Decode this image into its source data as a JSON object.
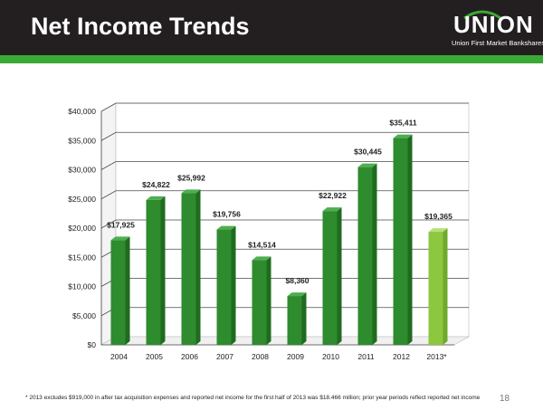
{
  "slide": {
    "title": "Net Income Trends",
    "footnote": "* 2013 excludes $919,000 in after tax acquisition expenses and reported net income for the first half of 2013 was $18.466 million; prior year periods reflect reported net income",
    "page_number": "18"
  },
  "logo": {
    "word": "UNION",
    "tagline": "Union First Market Bankshares"
  },
  "colors": {
    "header_bg": "#231f20",
    "accent_green": "#3aaa35",
    "bar_dark_green": "#2e8b2e",
    "bar_light_green": "#8dc63f"
  },
  "chart_data": {
    "type": "bar",
    "categories": [
      "2004",
      "2005",
      "2006",
      "2007",
      "2008",
      "2009",
      "2010",
      "2011",
      "2012",
      "2013*"
    ],
    "values": [
      17925,
      24822,
      25992,
      19756,
      14514,
      8360,
      22922,
      30445,
      35411,
      19365
    ],
    "data_labels": [
      "$17,925",
      "$24,822",
      "$25,992",
      "$19,756",
      "$14,514",
      "$8,360",
      "$22,922",
      "$30,445",
      "$35,411",
      "$19,365"
    ],
    "y_ticks": [
      "$0",
      "$5,000",
      "$10,000",
      "$15,000",
      "$20,000",
      "$25,000",
      "$30,000",
      "$35,000",
      "$40,000"
    ],
    "ylim": [
      0,
      40000
    ],
    "grid": true,
    "highlight_last": true
  }
}
